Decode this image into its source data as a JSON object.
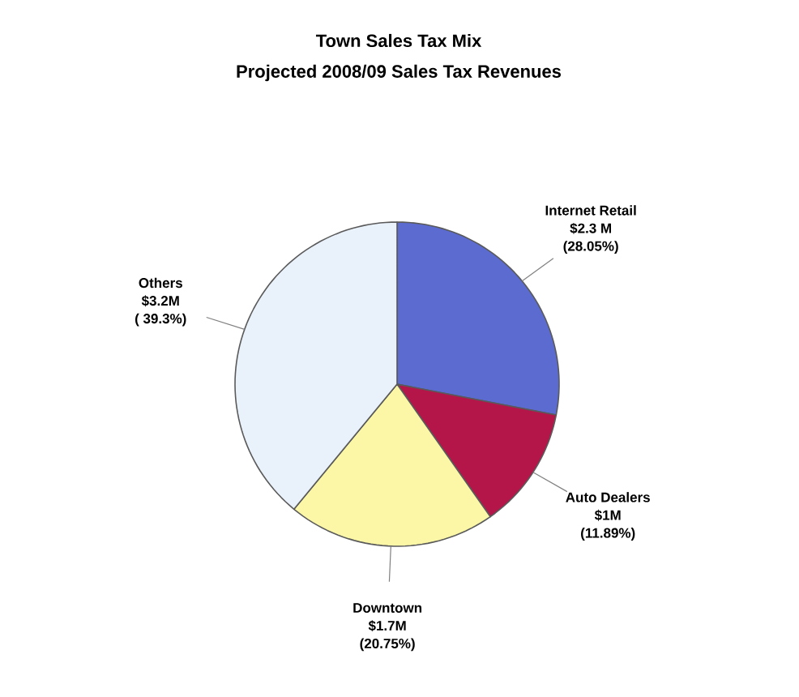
{
  "chart_data": {
    "type": "pie",
    "title": "Town Sales Tax Mix",
    "subtitle": "Projected 2008/09 Sales Tax Revenues",
    "categories": [
      "Internet Retail",
      "Auto Dealers",
      "Downtown",
      "Others"
    ],
    "values": [
      2.3,
      1,
      1.7,
      3.2
    ],
    "colors": [
      "#5b6bd0",
      "#b5164a",
      "#fbf7a6",
      "#e9f1fa"
    ],
    "value_labels": [
      "$2.3 M",
      "$1M",
      "$1.7M",
      "$3.2M"
    ],
    "annotations": [
      {
        "text": "(28.05%)",
        "x": "Internet Retail"
      },
      {
        "text": "(11.89%)",
        "x": "Auto Dealers"
      },
      {
        "text": "(20.75%)",
        "x": "Downtown"
      },
      {
        "text": "( 39.3%)",
        "x": "Others"
      }
    ]
  }
}
